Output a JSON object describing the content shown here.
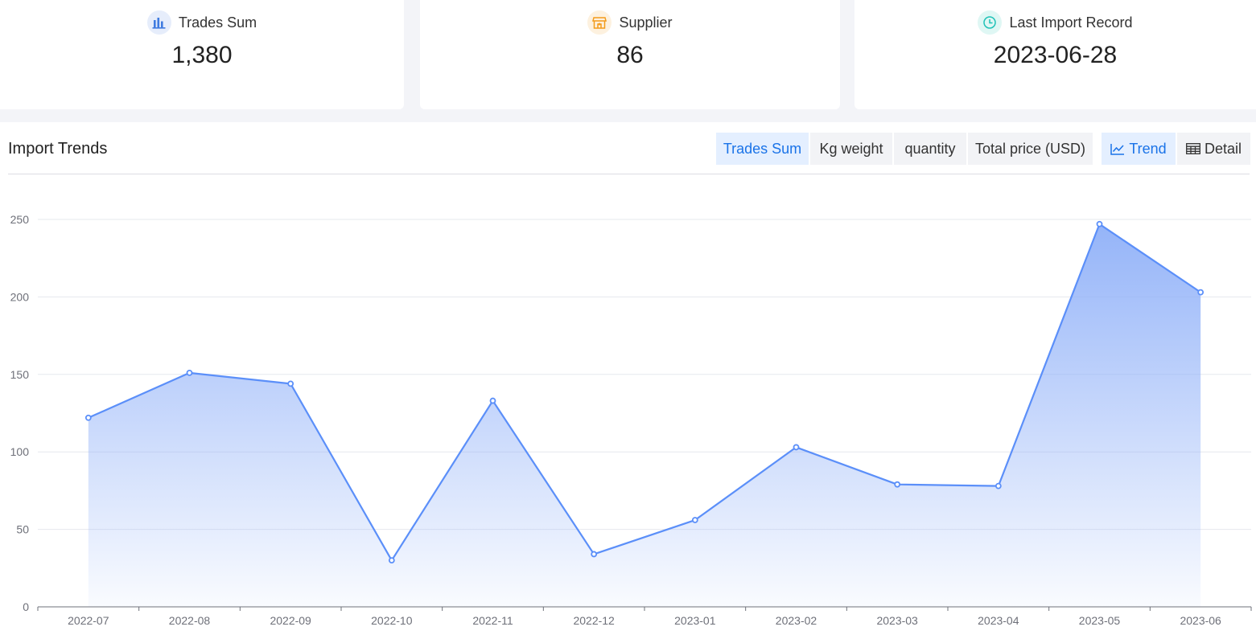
{
  "stats": [
    {
      "label": "Trades Sum",
      "value": "1,380",
      "icon": "bar-chart-icon",
      "icon_color": "#3f7be0",
      "icon_bg": "#e6edfb"
    },
    {
      "label": "Supplier",
      "value": "86",
      "icon": "store-icon",
      "icon_color": "#f39b1a",
      "icon_bg": "#fdf1df"
    },
    {
      "label": "Last Import Record",
      "value": "2023-06-28",
      "icon": "clock-icon",
      "icon_color": "#1fc2b7",
      "icon_bg": "#dff7f4"
    }
  ],
  "panel": {
    "title": "Import Trends",
    "metric_tabs": [
      "Trades Sum",
      "Kg weight",
      "quantity",
      "Total price (USD)"
    ],
    "active_metric": "Trades Sum",
    "view_tabs": [
      {
        "label": "Trend",
        "icon": "line-chart-icon"
      },
      {
        "label": "Detail",
        "icon": "table-icon"
      }
    ],
    "active_view": "Trend"
  },
  "colors": {
    "accent": "#1a73e8",
    "line": "#5b8ff9",
    "area_top": "#8fb0f8"
  },
  "chart_data": {
    "type": "area",
    "categories": [
      "2022-07",
      "2022-08",
      "2022-09",
      "2022-10",
      "2022-11",
      "2022-12",
      "2023-01",
      "2023-02",
      "2023-03",
      "2023-04",
      "2023-05",
      "2023-06"
    ],
    "series": [
      {
        "values": [
          122,
          151,
          144,
          30,
          133,
          34,
          56,
          103,
          79,
          78,
          247,
          203
        ]
      }
    ],
    "y_ticks": [
      "0",
      "50",
      "100",
      "150",
      "200",
      "250"
    ],
    "ylim": [
      0,
      250
    ],
    "grid": true
  }
}
